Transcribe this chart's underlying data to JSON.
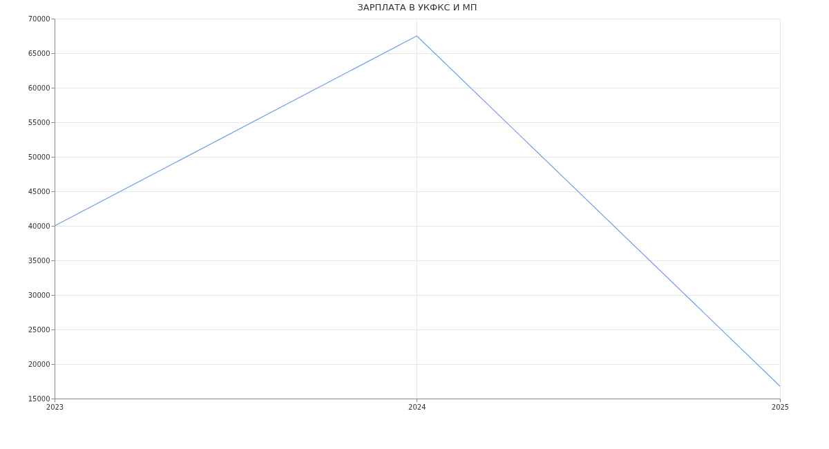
{
  "chart_data": {
    "type": "line",
    "title": "ЗАРПЛАТА В УКФКС И МП",
    "x": [
      "2023",
      "2024",
      "2025"
    ],
    "series": [
      {
        "color": "#6d9eeb",
        "values": [
          40000,
          67500,
          16800
        ]
      }
    ],
    "xlim": [
      "2023",
      "2025"
    ],
    "xticks": [
      "2023",
      "2024",
      "2025"
    ],
    "ylim": [
      15000,
      70000
    ],
    "yticks": [
      15000,
      20000,
      25000,
      30000,
      35000,
      40000,
      45000,
      50000,
      55000,
      60000,
      65000,
      70000
    ],
    "grid": true,
    "marker": "none",
    "line_style": "solid",
    "legend": false
  }
}
